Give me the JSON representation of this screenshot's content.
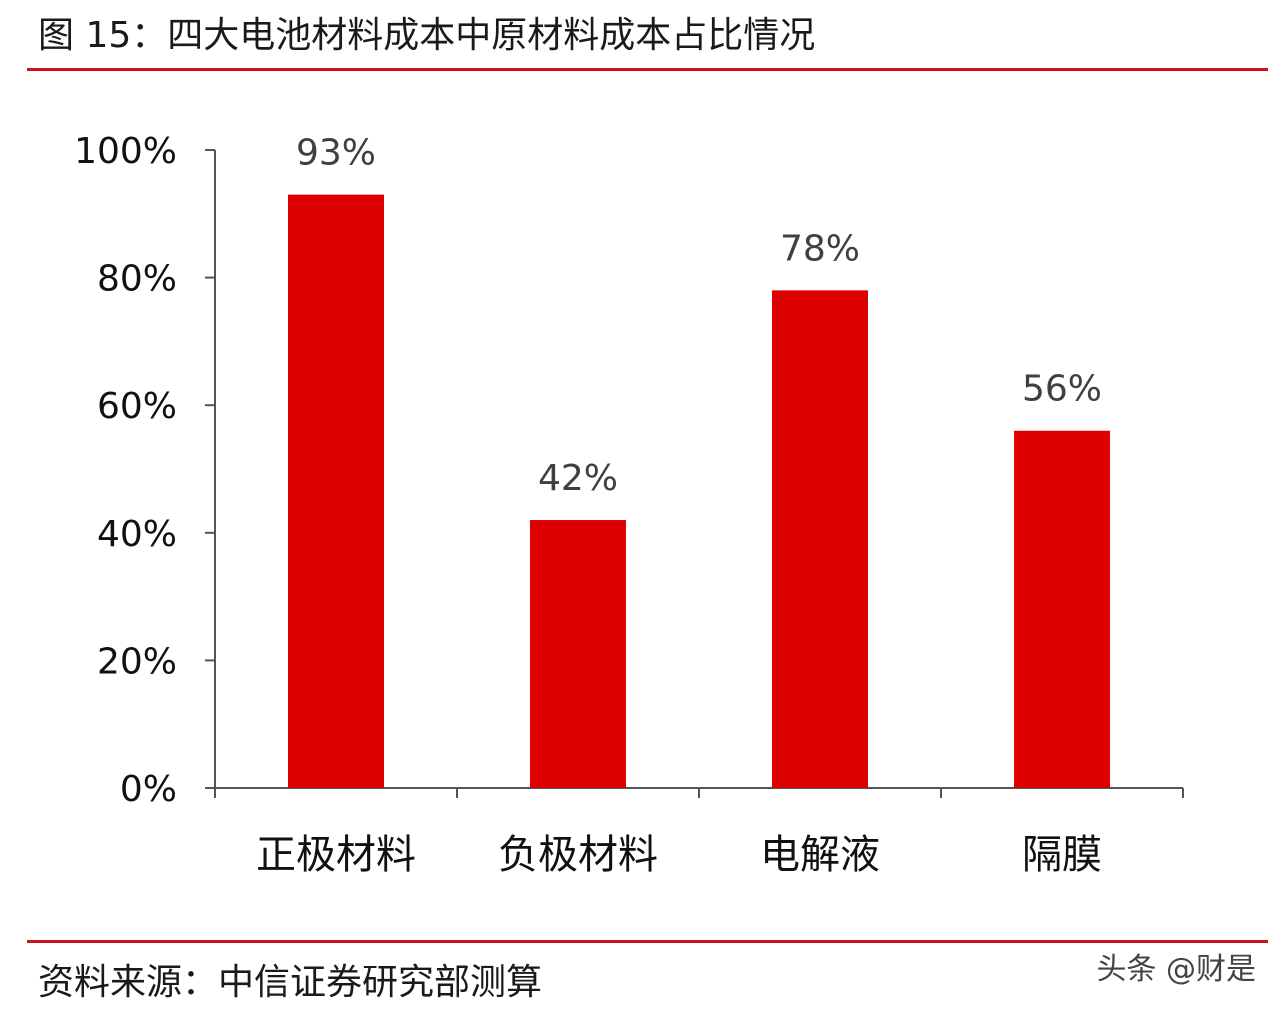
{
  "header": {
    "title": "图 15：四大电池材料成本中原材料成本占比情况"
  },
  "footer": {
    "source": "资料来源：中信证券研究部测算",
    "watermark": "头条 @财是"
  },
  "colors": {
    "bar": "#dd0000",
    "rule": "#c8161d",
    "axis": "#555555"
  },
  "chart_data": {
    "type": "bar",
    "categories": [
      "正极材料",
      "负极材料",
      "电解液",
      "隔膜"
    ],
    "values": [
      93,
      42,
      78,
      56
    ],
    "data_labels": [
      "93%",
      "42%",
      "78%",
      "56%"
    ],
    "ylim": [
      0,
      100
    ],
    "yticks": [
      0,
      20,
      40,
      60,
      80,
      100
    ],
    "ytick_labels": [
      "0%",
      "20%",
      "40%",
      "60%",
      "80%",
      "100%"
    ],
    "grid": false,
    "legend": "none"
  }
}
